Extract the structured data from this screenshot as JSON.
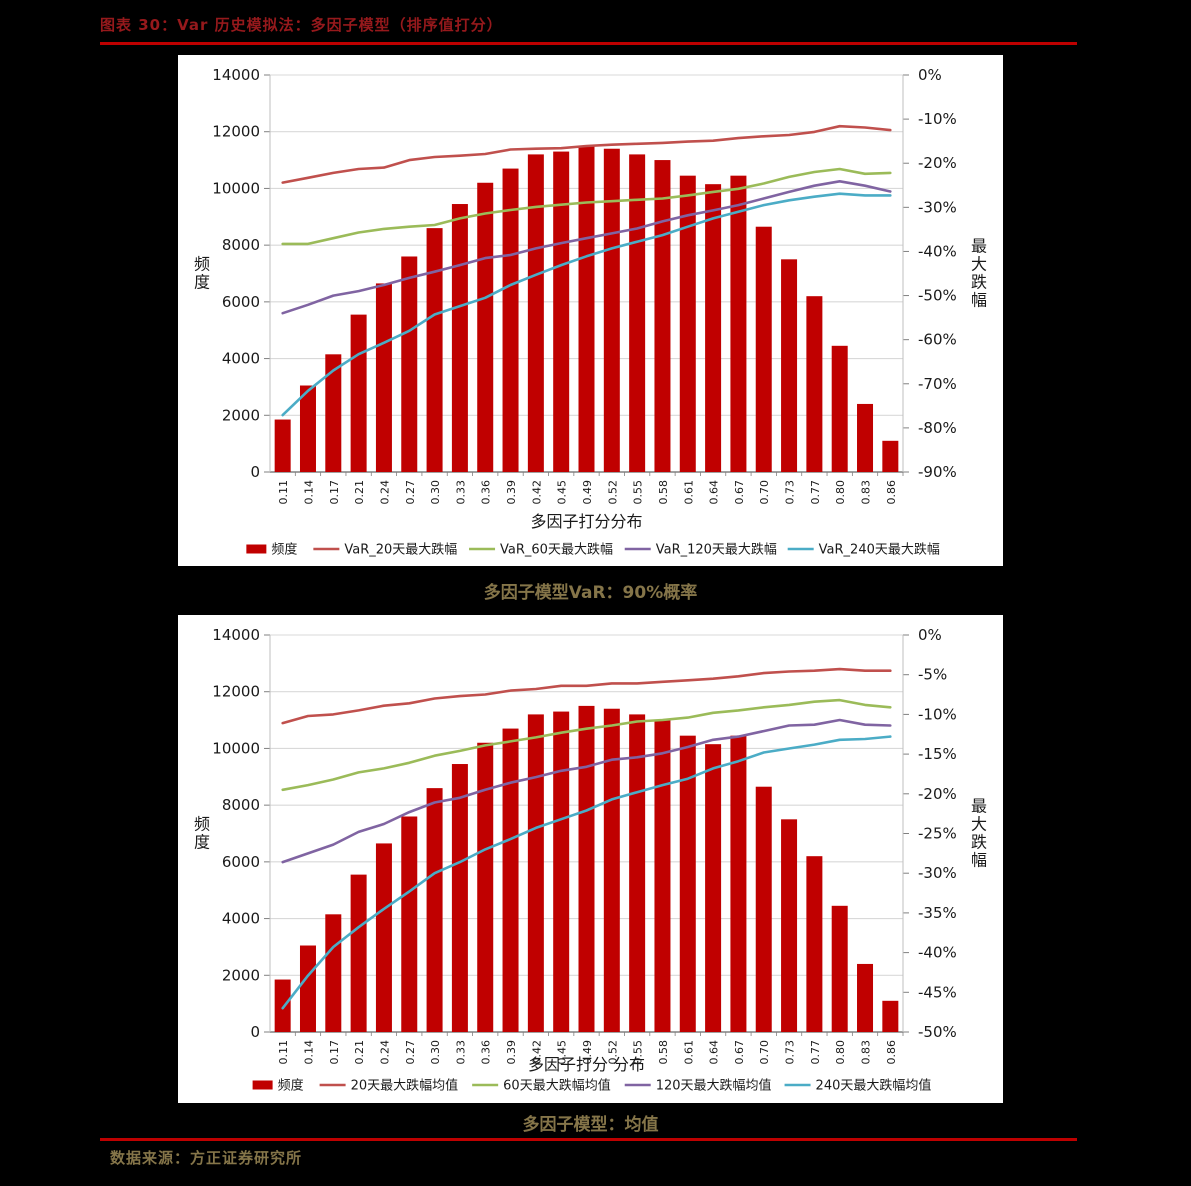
{
  "page": {
    "doc_title": "图表 30：Var 历史模拟法：多因子模型（排序值打分）",
    "source": "数据来源：方正证券研究所",
    "colors": {
      "background": "#000000",
      "doc_title": "#96191C",
      "rule": "#BE0000",
      "caption": "#857549",
      "panel": "#FFFFFF",
      "grid": "#D9D9D9",
      "axis_line": "#BFBFBF",
      "x_axis_line": "#808080",
      "axis_text": "#1A1A1A",
      "bar": "#C00000",
      "line_red": "#C0504D",
      "line_green": "#9BBB59",
      "line_purple": "#8064A2",
      "line_cyan": "#4BACC6"
    }
  },
  "chart_data": [
    {
      "type": "bar",
      "subtype": "bar-line-combo",
      "caption": "多因子模型VaR：90%概率",
      "xlabel": "多因子打分分布",
      "left_axis": {
        "title": "频度",
        "min": 0,
        "max": 14000,
        "step": 2000
      },
      "right_axis": {
        "title": "最大跌幅",
        "min": -90,
        "max": 0,
        "step": 10,
        "suffix": "%"
      },
      "grid": true,
      "legend_position": "bottom",
      "categories": [
        "0.11",
        "0.14",
        "0.17",
        "0.21",
        "0.24",
        "0.27",
        "0.30",
        "0.33",
        "0.36",
        "0.39",
        "0.42",
        "0.45",
        "0.49",
        "0.52",
        "0.55",
        "0.58",
        "0.61",
        "0.64",
        "0.67",
        "0.70",
        "0.73",
        "0.77",
        "0.80",
        "0.83",
        "0.86"
      ],
      "bars": {
        "name": "频度",
        "color": "#C00000",
        "values": [
          1850,
          3050,
          4150,
          5550,
          6650,
          7600,
          8600,
          9450,
          10200,
          10700,
          11200,
          11300,
          11500,
          11400,
          11200,
          11000,
          10450,
          10150,
          10450,
          8650,
          7500,
          6200,
          4450,
          2400,
          1100
        ]
      },
      "lines": [
        {
          "name": "VaR_20天最大跌幅",
          "color": "#C0504D",
          "values": [
            -24.4,
            -23.3,
            -22.2,
            -21.3,
            -21.0,
            -19.3,
            -18.6,
            -18.3,
            -17.9,
            -16.9,
            -16.7,
            -16.6,
            -16.1,
            -15.8,
            -15.6,
            -15.4,
            -15.1,
            -14.9,
            -14.3,
            -13.9,
            -13.6,
            -12.9,
            -11.6,
            -11.9,
            -12.5
          ]
        },
        {
          "name": "VaR_60天最大跌幅",
          "color": "#9BBB59",
          "values": [
            -38.3,
            -38.3,
            -37.0,
            -35.7,
            -34.9,
            -34.4,
            -34.0,
            -32.5,
            -31.4,
            -30.6,
            -29.9,
            -29.4,
            -28.9,
            -28.6,
            -28.3,
            -28.0,
            -27.3,
            -26.5,
            -25.8,
            -24.6,
            -23.1,
            -22.0,
            -21.3,
            -22.4,
            -22.2
          ]
        },
        {
          "name": "VaR_120天最大跌幅",
          "color": "#8064A2",
          "values": [
            -54.0,
            -52.1,
            -50.0,
            -49.0,
            -47.6,
            -46.0,
            -44.6,
            -43.1,
            -41.5,
            -40.8,
            -39.3,
            -38.1,
            -37.0,
            -35.9,
            -34.8,
            -33.2,
            -31.8,
            -30.7,
            -29.5,
            -28.0,
            -26.5,
            -25.1,
            -24.1,
            -25.1,
            -26.4
          ]
        },
        {
          "name": "VaR_240天最大跌幅",
          "color": "#4BACC6",
          "values": [
            -77.1,
            -71.6,
            -67.0,
            -63.3,
            -60.7,
            -58.0,
            -54.3,
            -52.4,
            -50.5,
            -47.6,
            -45.3,
            -43.1,
            -41.1,
            -39.3,
            -37.8,
            -36.3,
            -34.4,
            -32.5,
            -31.0,
            -29.5,
            -28.4,
            -27.6,
            -26.9,
            -27.3,
            -27.3
          ]
        }
      ],
      "legend": [
        "频度",
        "VaR_20天最大跌幅",
        "VaR_60天最大跌幅",
        "VaR_120天最大跌幅",
        "VaR_240天最大跌幅"
      ]
    },
    {
      "type": "bar",
      "subtype": "bar-line-combo",
      "caption": "多因子模型：均值",
      "xlabel": "多因子打分 分布",
      "left_axis": {
        "title": "频度",
        "min": 0,
        "max": 14000,
        "step": 2000
      },
      "right_axis": {
        "title": "最大跌幅",
        "min": -50,
        "max": 0,
        "step": 5,
        "suffix": "%"
      },
      "grid": true,
      "legend_position": "bottom",
      "categories": [
        "0.11",
        "0.14",
        "0.17",
        "0.21",
        "0.24",
        "0.27",
        "0.30",
        "0.33",
        "0.36",
        "0.39",
        "0.42",
        "0.45",
        "0.49",
        "0.52",
        "0.55",
        "0.58",
        "0.61",
        "0.64",
        "0.67",
        "0.70",
        "0.73",
        "0.77",
        "0.80",
        "0.83",
        "0.86"
      ],
      "bars": {
        "name": "频度",
        "color": "#C00000",
        "values": [
          1850,
          3050,
          4150,
          5550,
          6650,
          7600,
          8600,
          9450,
          10200,
          10700,
          11200,
          11300,
          11500,
          11400,
          11200,
          11000,
          10450,
          10150,
          10450,
          8650,
          7500,
          6200,
          4450,
          2400,
          1100
        ]
      },
      "lines": [
        {
          "name": "20天最大跌幅均值",
          "color": "#C0504D",
          "values": [
            -11.1,
            -10.2,
            -10.0,
            -9.5,
            -8.9,
            -8.6,
            -8.0,
            -7.7,
            -7.5,
            -7.0,
            -6.8,
            -6.4,
            -6.4,
            -6.1,
            -6.1,
            -5.9,
            -5.7,
            -5.5,
            -5.2,
            -4.8,
            -4.6,
            -4.5,
            -4.3,
            -4.5,
            -4.5
          ]
        },
        {
          "name": "60天最大跌幅均值",
          "color": "#9BBB59",
          "values": [
            -19.5,
            -18.9,
            -18.2,
            -17.3,
            -16.8,
            -16.1,
            -15.2,
            -14.6,
            -13.9,
            -13.4,
            -12.9,
            -12.3,
            -11.8,
            -11.4,
            -10.9,
            -10.7,
            -10.4,
            -9.8,
            -9.5,
            -9.1,
            -8.8,
            -8.4,
            -8.2,
            -8.8,
            -9.1
          ]
        },
        {
          "name": "120天最大跌幅均值",
          "color": "#8064A2",
          "values": [
            -28.6,
            -27.5,
            -26.4,
            -24.8,
            -23.8,
            -22.3,
            -21.1,
            -20.5,
            -19.5,
            -18.6,
            -17.9,
            -17.1,
            -16.6,
            -15.7,
            -15.4,
            -14.9,
            -14.1,
            -13.2,
            -12.8,
            -12.1,
            -11.4,
            -11.3,
            -10.7,
            -11.3,
            -11.4
          ]
        },
        {
          "name": "240天最大跌幅均值",
          "color": "#4BACC6",
          "values": [
            -47.0,
            -42.9,
            -39.3,
            -36.8,
            -34.5,
            -32.3,
            -30.0,
            -28.6,
            -27.0,
            -25.7,
            -24.3,
            -23.2,
            -22.1,
            -20.7,
            -19.8,
            -18.9,
            -18.1,
            -16.8,
            -15.9,
            -14.8,
            -14.3,
            -13.8,
            -13.2,
            -13.1,
            -12.8
          ]
        }
      ],
      "legend": [
        "频度",
        "20天最大跌幅均值",
        "60天最大跌幅均值",
        "120天最大跌幅均值",
        "240天最大跌幅均值"
      ]
    }
  ]
}
